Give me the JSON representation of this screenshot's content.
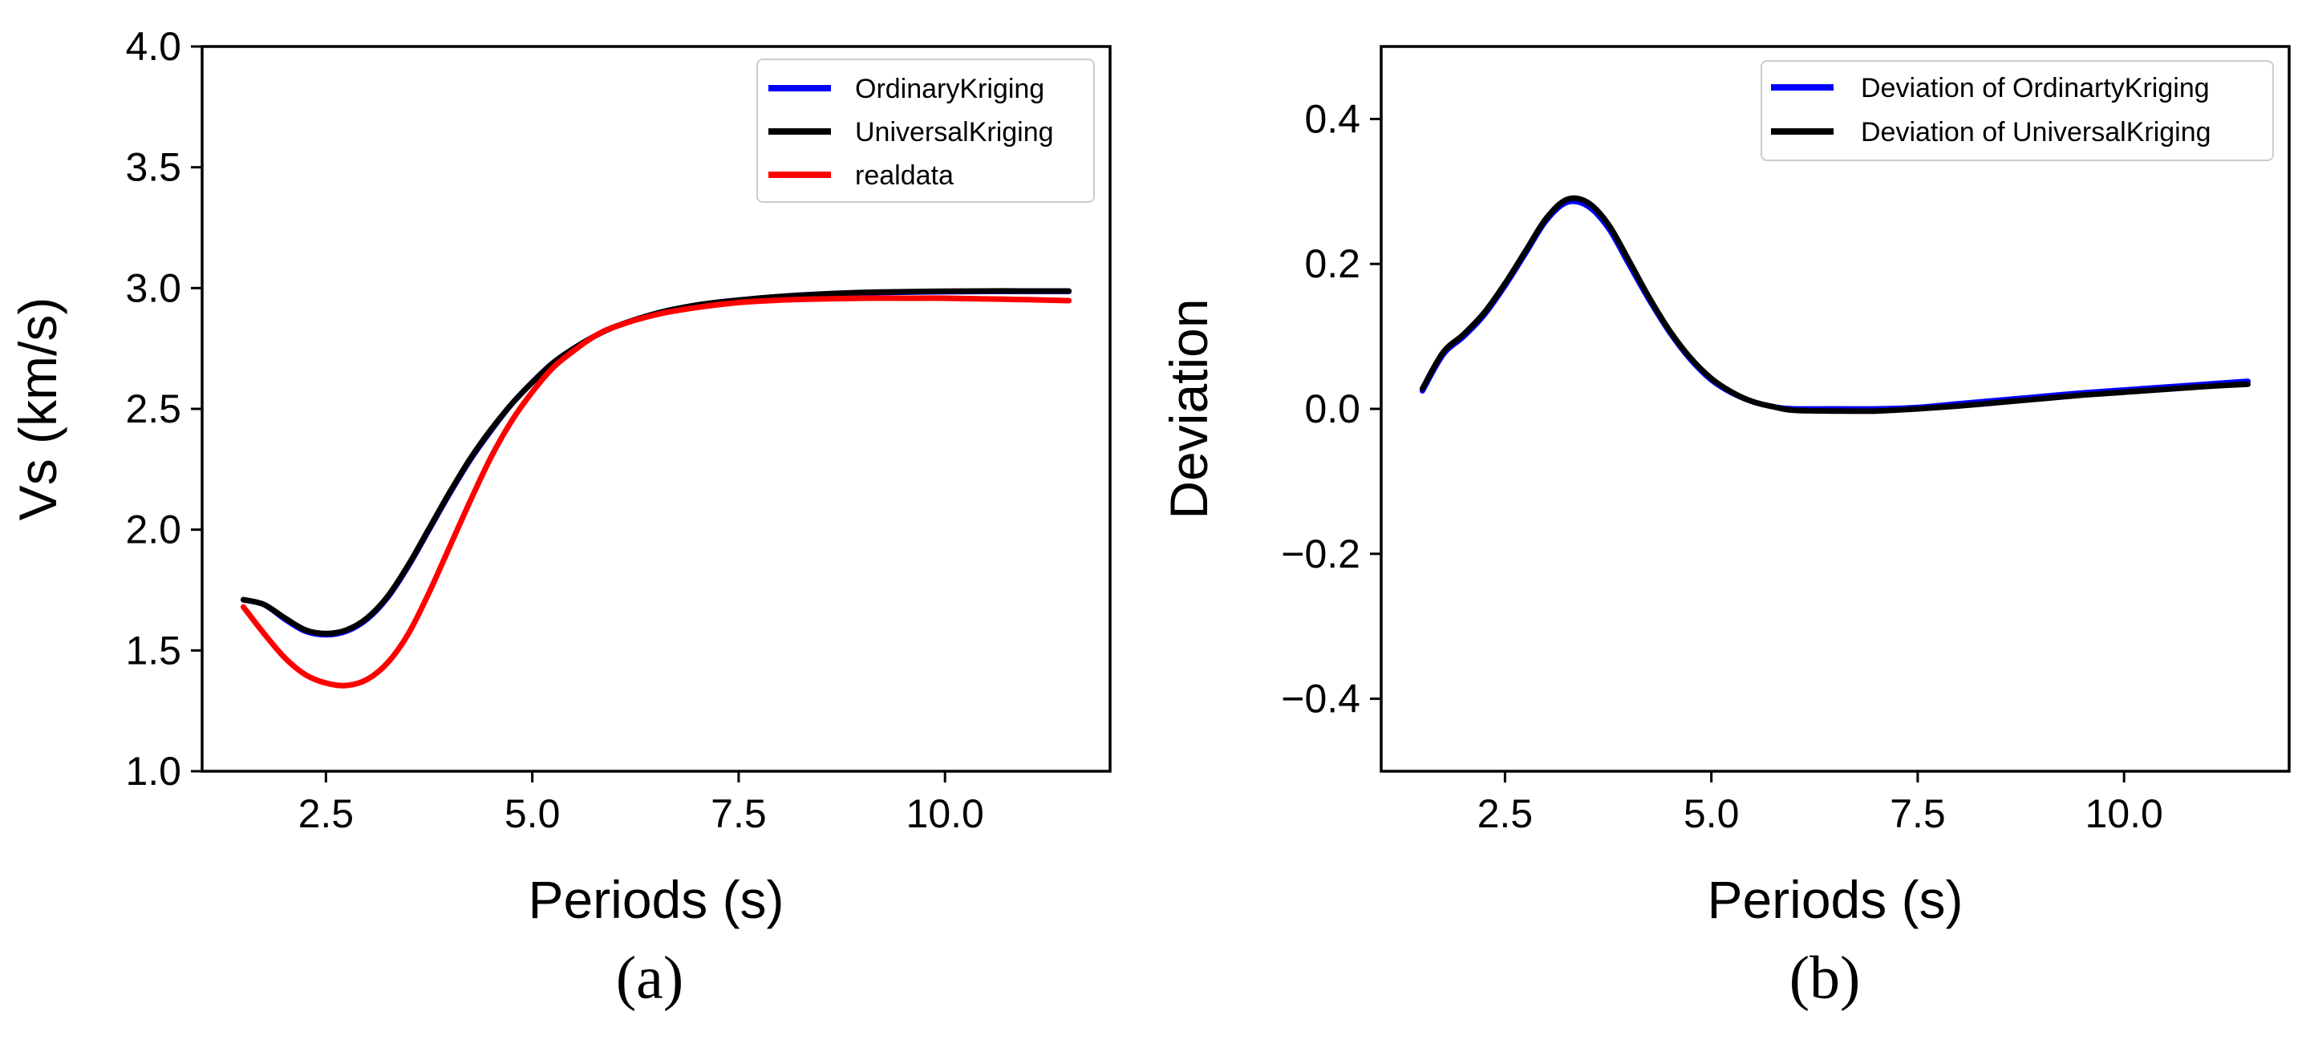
{
  "chart_data": [
    {
      "type": "line",
      "caption": "(a)",
      "xlabel": "Periods (s)",
      "ylabel": "Vs (km/s)",
      "xlim": [
        1.0,
        12.0
      ],
      "ylim": [
        1.0,
        4.0
      ],
      "xticks": [
        2.5,
        5.0,
        7.5,
        10.0
      ],
      "xtick_labels": [
        "2.5",
        "5.0",
        "7.5",
        "10.0"
      ],
      "yticks": [
        1.0,
        1.5,
        2.0,
        2.5,
        3.0,
        3.5,
        4.0
      ],
      "ytick_labels": [
        "1.0",
        "1.5",
        "2.0",
        "2.5",
        "3.0",
        "3.5",
        "4.0"
      ],
      "legend_position": "top-right",
      "x": [
        1.5,
        1.75,
        2.0,
        2.25,
        2.5,
        2.75,
        3.0,
        3.25,
        3.5,
        3.75,
        4.0,
        4.25,
        4.5,
        4.75,
        5.0,
        5.25,
        5.5,
        5.75,
        6.0,
        6.5,
        7.0,
        7.5,
        8.0,
        8.5,
        9.0,
        9.5,
        10.0,
        10.5,
        11.0,
        11.5
      ],
      "series": [
        {
          "name": "OrdinaryKriging",
          "color": "#0000ff",
          "values": [
            1.71,
            1.69,
            1.63,
            1.58,
            1.565,
            1.58,
            1.63,
            1.72,
            1.85,
            2.0,
            2.15,
            2.29,
            2.41,
            2.52,
            2.61,
            2.69,
            2.75,
            2.8,
            2.84,
            2.895,
            2.93,
            2.95,
            2.965,
            2.975,
            2.98,
            2.983,
            2.985,
            2.986,
            2.986,
            2.986
          ]
        },
        {
          "name": "UniversalKriging",
          "color": "#000000",
          "values": [
            1.71,
            1.69,
            1.635,
            1.585,
            1.57,
            1.585,
            1.635,
            1.725,
            1.855,
            2.005,
            2.155,
            2.295,
            2.415,
            2.52,
            2.61,
            2.69,
            2.75,
            2.8,
            2.84,
            2.895,
            2.93,
            2.95,
            2.965,
            2.975,
            2.982,
            2.985,
            2.987,
            2.988,
            2.988,
            2.988
          ]
        },
        {
          "name": "realdata",
          "color": "#ff0000",
          "values": [
            1.68,
            1.57,
            1.47,
            1.4,
            1.365,
            1.355,
            1.38,
            1.45,
            1.57,
            1.74,
            1.93,
            2.12,
            2.3,
            2.45,
            2.57,
            2.67,
            2.74,
            2.8,
            2.84,
            2.89,
            2.92,
            2.94,
            2.95,
            2.955,
            2.958,
            2.958,
            2.958,
            2.955,
            2.952,
            2.948
          ]
        }
      ]
    },
    {
      "type": "line",
      "caption": "(b)",
      "xlabel": "Periods (s)",
      "ylabel": "Deviation",
      "xlim": [
        1.0,
        12.0
      ],
      "ylim": [
        -0.5,
        0.5
      ],
      "xticks": [
        2.5,
        5.0,
        7.5,
        10.0
      ],
      "xtick_labels": [
        "2.5",
        "5.0",
        "7.5",
        "10.0"
      ],
      "yticks": [
        -0.4,
        -0.2,
        0.0,
        0.2,
        0.4
      ],
      "ytick_labels": [
        "−0.4",
        "−0.2",
        "0.0",
        "0.2",
        "0.4"
      ],
      "legend_position": "top-right",
      "x": [
        1.5,
        1.75,
        2.0,
        2.25,
        2.5,
        2.75,
        3.0,
        3.25,
        3.5,
        3.75,
        4.0,
        4.25,
        4.5,
        4.75,
        5.0,
        5.25,
        5.5,
        5.75,
        6.0,
        6.5,
        7.0,
        7.5,
        8.0,
        8.5,
        9.0,
        9.5,
        10.0,
        10.5,
        11.0,
        11.5
      ],
      "series": [
        {
          "name": "Deviation of OrdinartyKriging",
          "color": "#0000ff",
          "values": [
            0.025,
            0.075,
            0.1,
            0.13,
            0.17,
            0.215,
            0.26,
            0.285,
            0.28,
            0.25,
            0.2,
            0.15,
            0.105,
            0.068,
            0.04,
            0.022,
            0.01,
            0.003,
            0.0,
            0.0,
            0.0,
            0.002,
            0.007,
            0.012,
            0.017,
            0.022,
            0.026,
            0.03,
            0.034,
            0.038
          ]
        },
        {
          "name": "Deviation of UniversalKriging",
          "color": "#000000",
          "values": [
            0.028,
            0.078,
            0.103,
            0.133,
            0.173,
            0.218,
            0.263,
            0.289,
            0.285,
            0.255,
            0.205,
            0.153,
            0.107,
            0.07,
            0.042,
            0.023,
            0.01,
            0.003,
            -0.002,
            -0.003,
            -0.003,
            0.0,
            0.004,
            0.009,
            0.014,
            0.019,
            0.023,
            0.027,
            0.031,
            0.034
          ]
        }
      ]
    }
  ]
}
